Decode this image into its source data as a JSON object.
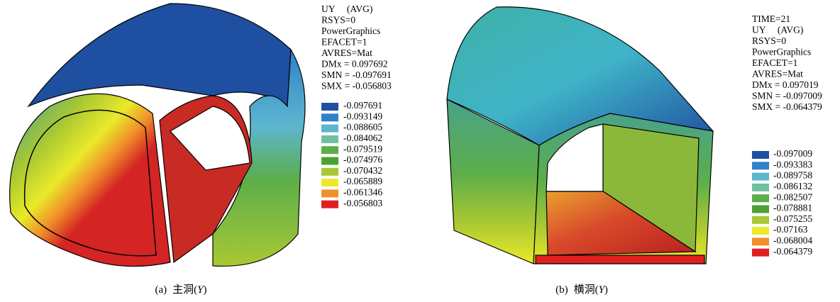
{
  "panels": [
    {
      "header": [
        "UY     (AVG)",
        "RSYS=0",
        "PowerGraphics",
        "EFACET=1",
        "AVRES=Mat",
        "DMx = 0.097692",
        "SMN = -0.097691",
        "SMX = -0.056803"
      ],
      "legend": [
        {
          "label": "-0.097691",
          "color": "#1f4fa0"
        },
        {
          "label": "-0.093149",
          "color": "#2f82c8"
        },
        {
          "label": "-0.088605",
          "color": "#5cb6cf"
        },
        {
          "label": "-0.084062",
          "color": "#6fc0a0"
        },
        {
          "label": "-0.079519",
          "color": "#5cae4a"
        },
        {
          "label": "-0.074976",
          "color": "#4aa232"
        },
        {
          "label": "-0.070432",
          "color": "#a9c832"
        },
        {
          "label": "-0.065889",
          "color": "#eaea2a"
        },
        {
          "label": "-0.061346",
          "color": "#f0902a"
        },
        {
          "label": "-0.056803",
          "color": "#e02020"
        }
      ],
      "caption": [
        "(a)",
        "主洞(",
        "Y",
        ")"
      ]
    },
    {
      "header": [
        "TIME=21",
        "UY     (AVG)",
        "RSYS=0",
        "PowerGraphics",
        "EFACET=1",
        "AVRES=Mat",
        "DMx = 0.097019",
        "SMN = -0.097009",
        "SMX = -0.064379"
      ],
      "legend": [
        {
          "label": "-0.097009",
          "color": "#1f4fa0"
        },
        {
          "label": "-0.093383",
          "color": "#2f82c8"
        },
        {
          "label": "-0.089758",
          "color": "#5cb6cf"
        },
        {
          "label": "-0.086132",
          "color": "#6fc0a0"
        },
        {
          "label": "-0.082507",
          "color": "#5cae4a"
        },
        {
          "label": "-0.078881",
          "color": "#4aa232"
        },
        {
          "label": "-0.075255",
          "color": "#a9c832"
        },
        {
          "label": "-0.07163",
          "color": "#eaea2a"
        },
        {
          "label": "-0.068004",
          "color": "#f0902a"
        },
        {
          "label": "-0.064379",
          "color": "#e02020"
        }
      ],
      "caption": [
        "(b)",
        "横洞(",
        "Y",
        ")"
      ]
    }
  ]
}
